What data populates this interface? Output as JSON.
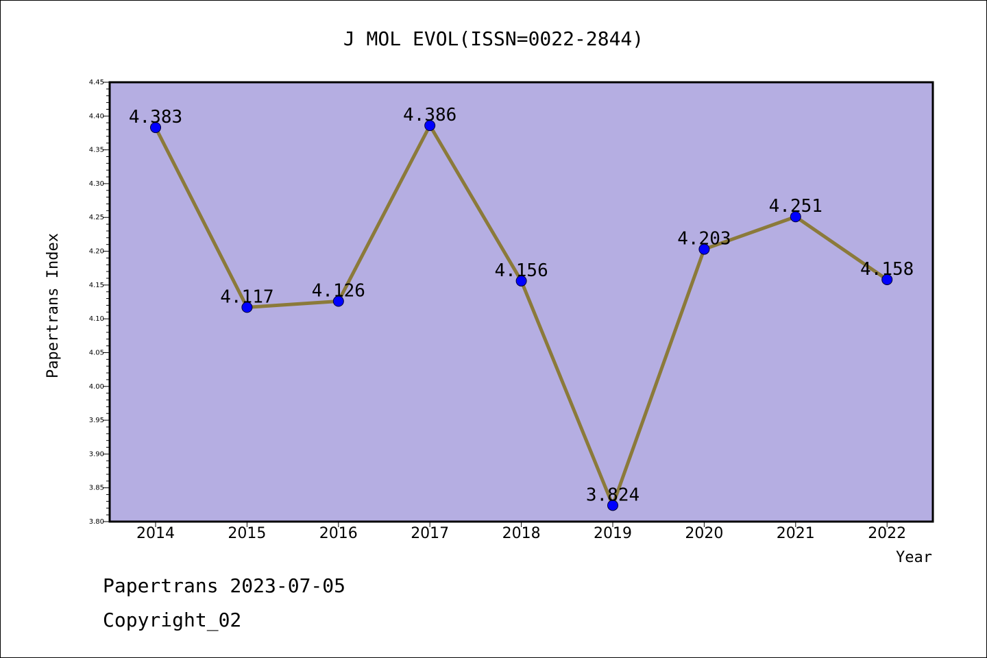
{
  "chart_data": {
    "type": "line",
    "title": "J MOL EVOL(ISSN=0022-2844)",
    "xlabel": "Year",
    "ylabel": "Papertrans Index",
    "categories": [
      "2014",
      "2015",
      "2016",
      "2017",
      "2018",
      "2019",
      "2020",
      "2021",
      "2022"
    ],
    "series": [
      {
        "values": [
          4.383,
          4.117,
          4.126,
          4.386,
          4.156,
          3.824,
          4.203,
          4.251,
          4.158
        ],
        "labels": [
          "4.383",
          "4.117",
          "4.126",
          "4.386",
          "4.156",
          "3.824",
          "4.203",
          "4.251",
          "4.158"
        ]
      }
    ],
    "ylim": [
      3.8,
      4.45
    ],
    "yticks": [
      "3.80",
      "3.85",
      "3.90",
      "3.95",
      "4.00",
      "4.05",
      "4.10",
      "4.15",
      "4.20",
      "4.25",
      "4.30",
      "4.35",
      "4.40",
      "4.45"
    ],
    "grid": false,
    "colors": {
      "plot_background": "#b5aee2",
      "line": "#8b7a3a",
      "marker": "#0000ff"
    }
  },
  "footer": {
    "line1": "Papertrans 2023-07-05",
    "line2": "Copyright_02"
  }
}
